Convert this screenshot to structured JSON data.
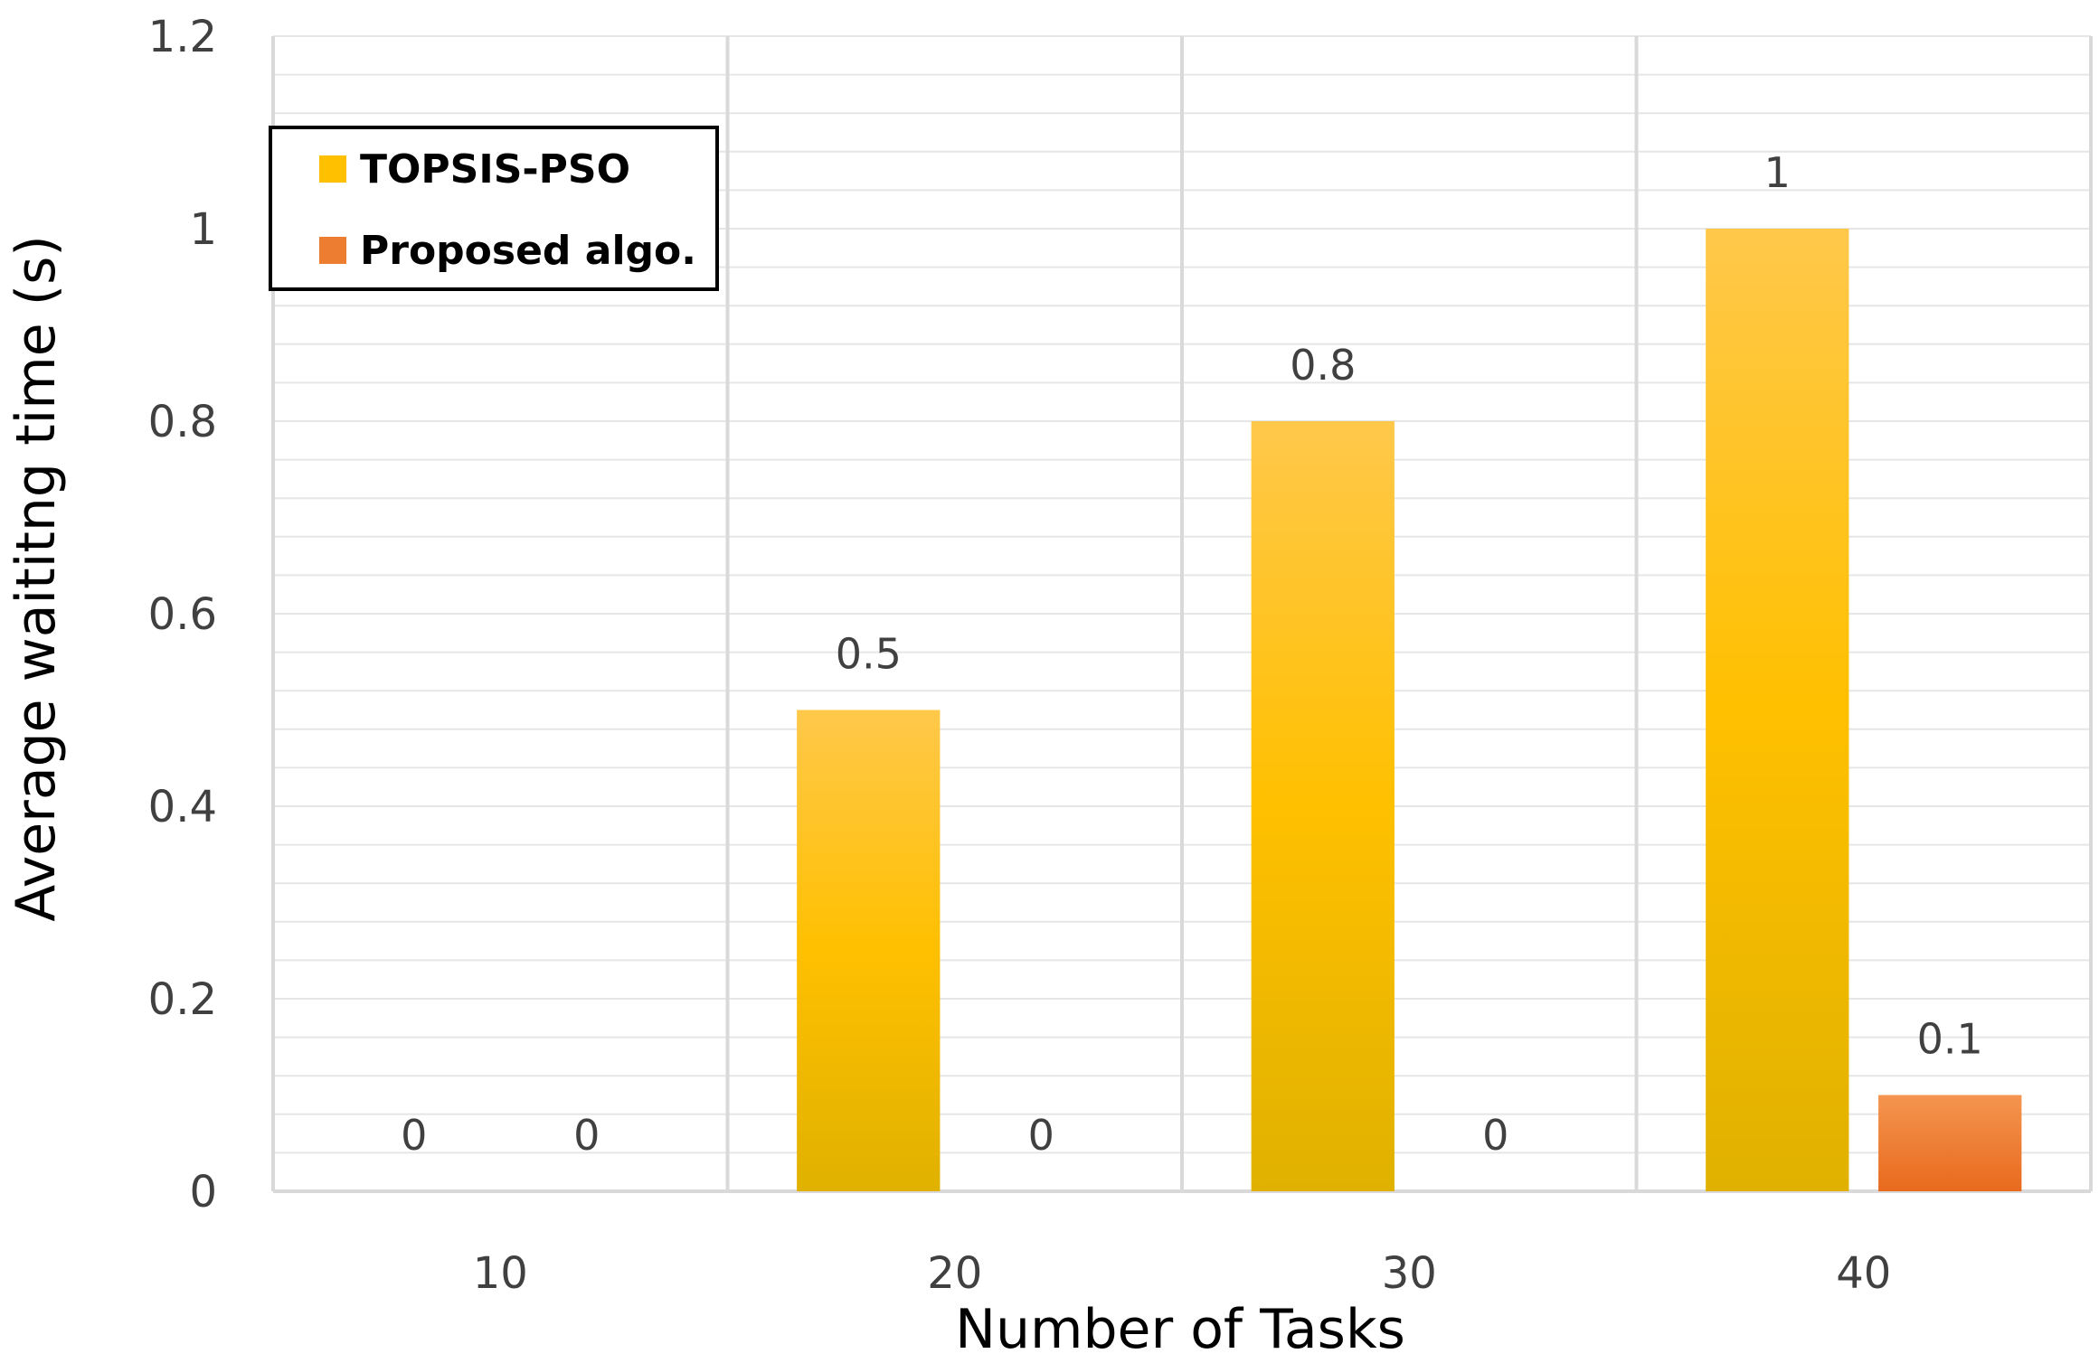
{
  "chart_data": {
    "type": "bar",
    "title": "",
    "xlabel": "Number of Tasks",
    "ylabel": "Average waititng time (s)",
    "categories": [
      "10",
      "20",
      "30",
      "40"
    ],
    "series": [
      {
        "name": "TOPSIS-PSO",
        "values": [
          0,
          0.5,
          0.8,
          1
        ],
        "labels": [
          "0",
          "0.5",
          "0.8",
          "1"
        ]
      },
      {
        "name": "Proposed algo.",
        "values": [
          0,
          0,
          0,
          0.1
        ],
        "labels": [
          "0",
          "0",
          "0",
          "0.1"
        ]
      }
    ],
    "ylim": [
      0,
      1.2
    ],
    "yticks": [
      0,
      0.2,
      0.4,
      0.6,
      0.8,
      1,
      1.2
    ],
    "ytick_labels": [
      "0",
      "0.2",
      "0.4",
      "0.6",
      "0.8",
      "1",
      "1.2"
    ],
    "grid": true,
    "legend_position": "top-left",
    "colors": {
      "series": [
        "#FFC000",
        "#ED7D31"
      ],
      "grid_major": "#d9d9d9",
      "grid_minor": "#e6e6e6"
    }
  }
}
